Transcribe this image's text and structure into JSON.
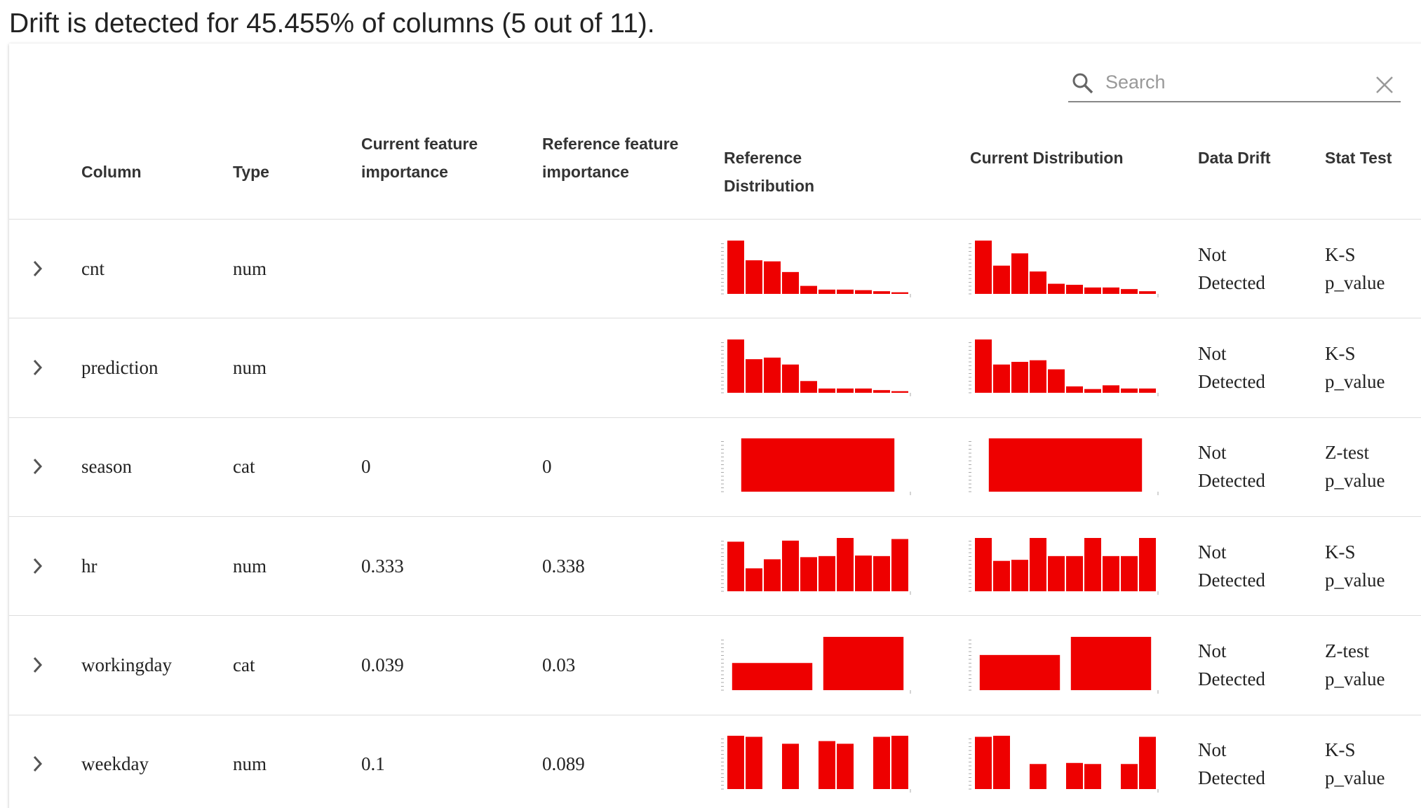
{
  "header": {
    "title": "Drift is detected for 45.455% of columns (5 out of 11)."
  },
  "search": {
    "placeholder": "Search"
  },
  "table": {
    "columns": [
      "Column",
      "Type",
      "Current feature importance",
      "Reference feature importance",
      "Reference Distribution",
      "Current Distribution",
      "Data Drift",
      "Stat Test"
    ],
    "rows": [
      {
        "column": "cnt",
        "type": "num",
        "reference_distribution": [
          100,
          63,
          61,
          41,
          15,
          8,
          8,
          7,
          5,
          3
        ],
        "current_distribution": [
          100,
          53,
          76,
          42,
          19,
          17,
          12,
          12,
          9,
          5
        ],
        "data_drift": "Not Detected",
        "stat_test": "K-S p_value"
      },
      {
        "column": "prediction",
        "type": "num",
        "reference_distribution": [
          100,
          63,
          66,
          53,
          22,
          8,
          8,
          8,
          5,
          3
        ],
        "current_distribution": [
          100,
          53,
          58,
          61,
          44,
          12,
          7,
          14,
          8,
          8
        ],
        "data_drift": "Not Detected",
        "stat_test": "K-S p_value"
      },
      {
        "column": "season",
        "type": "cat",
        "current_importance": "0",
        "reference_importance": "0",
        "reference_distribution": [
          100
        ],
        "current_distribution": [
          100
        ],
        "data_drift": "Not Detected",
        "stat_test": "Z-test p_value"
      },
      {
        "column": "hr",
        "type": "num",
        "current_importance": "0.333",
        "reference_importance": "0.338",
        "reference_distribution": [
          93,
          43,
          60,
          95,
          64,
          66,
          100,
          67,
          66,
          98
        ],
        "current_distribution": [
          100,
          57,
          59,
          100,
          66,
          66,
          100,
          66,
          66,
          100
        ],
        "data_drift": "Not Detected",
        "stat_test": "K-S p_value"
      },
      {
        "column": "workingday",
        "type": "cat",
        "current_importance": "0.039",
        "reference_importance": "0.03",
        "reference_distribution": [
          51,
          100
        ],
        "current_distribution": [
          66,
          100
        ],
        "data_drift": "Not Detected",
        "stat_test": "Z-test p_value"
      },
      {
        "column": "weekday",
        "type": "num",
        "current_importance": "0.1",
        "reference_importance": "0.089",
        "reference_distribution": [
          100,
          98,
          0,
          85,
          0,
          90,
          85,
          0,
          98,
          100
        ],
        "current_distribution": [
          98,
          100,
          0,
          47,
          0,
          49,
          47,
          0,
          47,
          98
        ],
        "data_drift": "Not Detected",
        "stat_test": "K-S p_value"
      }
    ]
  }
}
